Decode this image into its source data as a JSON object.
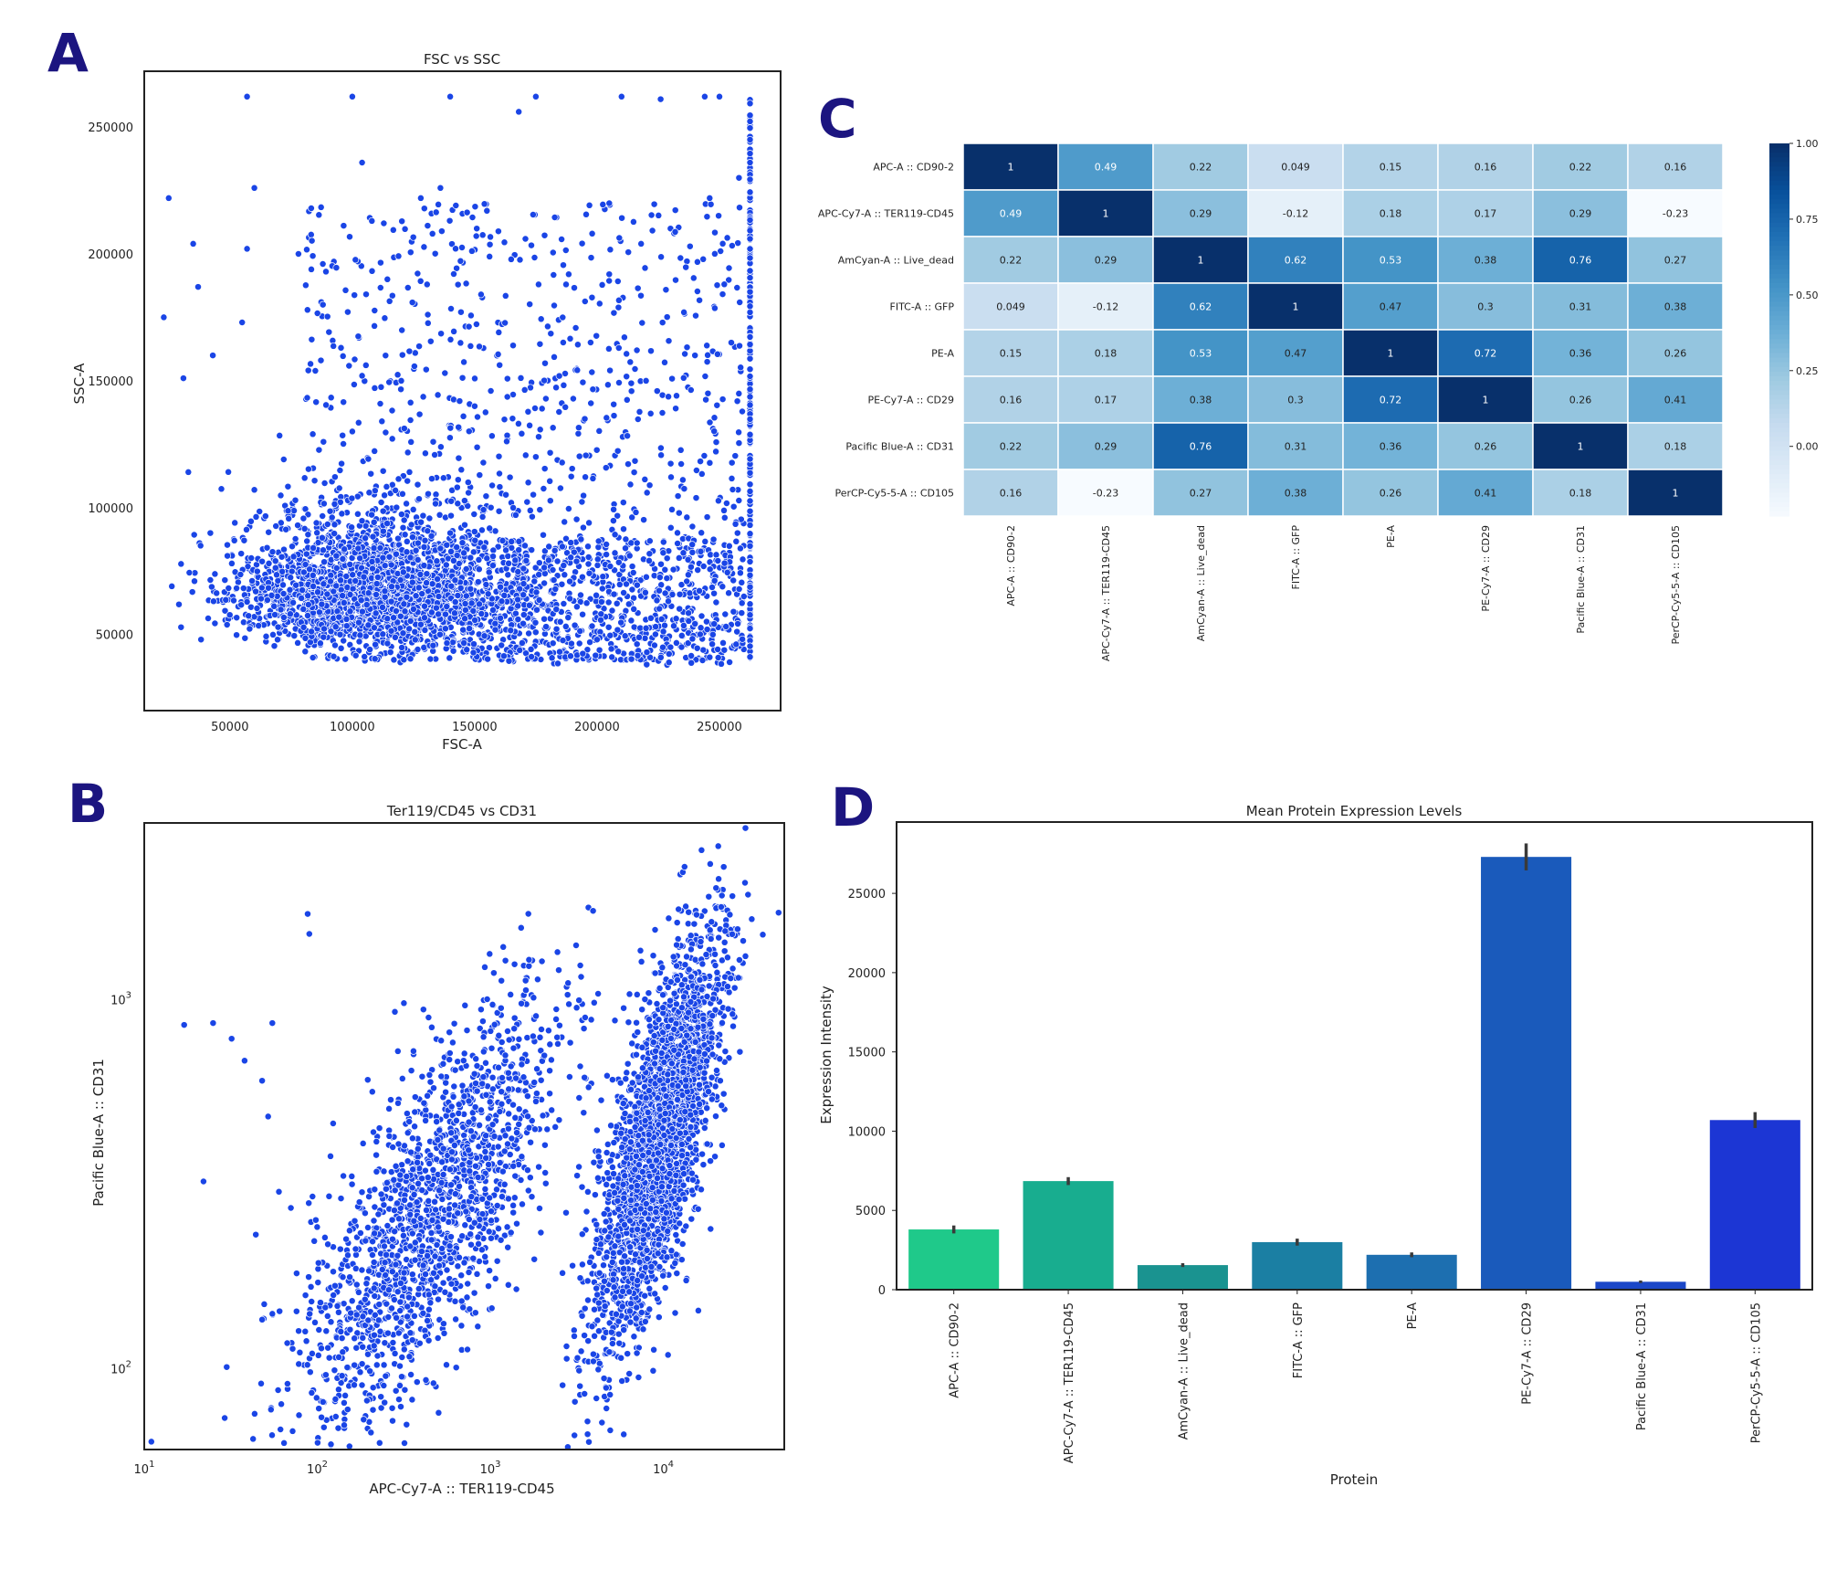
{
  "panel_letters": [
    "A",
    "B",
    "C",
    "D"
  ],
  "chart_data": [
    {
      "panel": "A",
      "type": "scatter",
      "title": "FSC vs SSC",
      "xlabel": "FSC-A",
      "ylabel": "SSC-A",
      "xlim": [
        15000,
        275000
      ],
      "ylim": [
        20000,
        272000
      ],
      "xticks": [
        50000,
        100000,
        150000,
        200000,
        250000
      ],
      "yticks": [
        50000,
        100000,
        150000,
        200000,
        250000
      ],
      "point_color": "#1a45e6",
      "points": [
        [
          25000,
          222000
        ],
        [
          23000,
          175000
        ],
        [
          35000,
          204000
        ],
        [
          31000,
          151000
        ],
        [
          37000,
          187000
        ],
        [
          43000,
          160000
        ],
        [
          55000,
          173000
        ],
        [
          60000,
          226000
        ],
        [
          57000,
          202000
        ],
        [
          78000,
          200000
        ],
        [
          100000,
          262000
        ],
        [
          57000,
          262000
        ],
        [
          140000,
          262000
        ],
        [
          175000,
          262000
        ],
        [
          168000,
          256000
        ],
        [
          250000,
          262000
        ],
        [
          244000,
          262000
        ],
        [
          210000,
          262000
        ],
        [
          226000,
          261000
        ],
        [
          33000,
          114000
        ],
        [
          38000,
          85000
        ],
        [
          42000,
          90000
        ],
        [
          49000,
          81000
        ],
        [
          52000,
          94000
        ],
        [
          60000,
          107000
        ],
        [
          72000,
          119000
        ],
        [
          88000,
          180000
        ],
        [
          104000,
          236000
        ],
        [
          108000,
          213000
        ],
        [
          128000,
          222000
        ],
        [
          136000,
          226000
        ],
        [
          155000,
          217000
        ],
        [
          198000,
          208000
        ],
        [
          205000,
          192000
        ],
        [
          218000,
          204000
        ],
        [
          238000,
          203000
        ],
        [
          246000,
          222000
        ],
        [
          258000,
          230000
        ],
        [
          252000,
          188000
        ],
        [
          80000,
          60000
        ],
        [
          95000,
          50000
        ],
        [
          110000,
          70000
        ],
        [
          125000,
          60000
        ],
        [
          140000,
          90000
        ],
        [
          155000,
          80000
        ],
        [
          170000,
          70000
        ],
        [
          185000,
          55000
        ],
        [
          200000,
          48000
        ],
        [
          215000,
          60000
        ],
        [
          230000,
          45000
        ],
        [
          245000,
          52000
        ],
        [
          260000,
          65000
        ],
        [
          100000,
          130000
        ],
        [
          120000,
          150000
        ],
        [
          150000,
          140000
        ],
        [
          175000,
          120000
        ],
        [
          195000,
          135000
        ],
        [
          220000,
          150000
        ],
        [
          240000,
          160000
        ]
      ],
      "cluster_description": "dense cloud centered near FSC 90000-130000, SSC 45000-80000, sparse toward high FSC/SSC, vertical saturation streak at FSC 262000"
    },
    {
      "panel": "B",
      "type": "scatter",
      "title": "Ter119/CD45 vs CD31",
      "xlabel": "APC-Cy7-A :: TER119-CD45",
      "ylabel": "Pacific Blue-A :: CD31",
      "xscale": "log",
      "yscale": "log",
      "xlim": [
        10,
        50000
      ],
      "ylim": [
        60,
        3000
      ],
      "xticks": [
        "10^1",
        "10^2",
        "10^3",
        "10^4"
      ],
      "yticks": [
        "10^2",
        "10^3"
      ],
      "point_color": "#1a45e6",
      "clusters": [
        {
          "center_x": 400,
          "center_y": 300,
          "description": "diffuse population extending from ~100,100 to ~3000,2000"
        },
        {
          "center_x": 9000,
          "center_y": 400,
          "description": "dense population 5000-25000 on x, 150-2000 on y"
        }
      ],
      "outliers": [
        [
          11,
          63
        ],
        [
          17,
          850
        ],
        [
          25,
          860
        ],
        [
          22,
          320
        ],
        [
          32,
          780
        ],
        [
          38,
          680
        ],
        [
          48,
          600
        ],
        [
          55,
          860
        ],
        [
          52,
          480
        ],
        [
          48,
          135
        ],
        [
          55,
          140
        ],
        [
          60,
          300
        ],
        [
          90,
          1500
        ],
        [
          88,
          1700
        ],
        [
          54,
          77
        ],
        [
          120,
          62
        ]
      ]
    },
    {
      "panel": "C",
      "type": "heatmap",
      "row_labels": [
        "APC-A :: CD90-2",
        "APC-Cy7-A :: TER119-CD45",
        "AmCyan-A :: Live_dead",
        "FITC-A :: GFP",
        "PE-A",
        "PE-Cy7-A :: CD29",
        "Pacific Blue-A :: CD31",
        "PerCP-Cy5-5-A :: CD105"
      ],
      "col_labels": [
        "APC-A :: CD90-2",
        "APC-Cy7-A :: TER119-CD45",
        "AmCyan-A :: Live_dead",
        "FITC-A :: GFP",
        "PE-A",
        "PE-Cy7-A :: CD29",
        "Pacific Blue-A :: CD31",
        "PerCP-Cy5-5-A :: CD105"
      ],
      "values": [
        [
          1,
          0.49,
          0.22,
          0.049,
          0.15,
          0.16,
          0.22,
          0.16
        ],
        [
          0.49,
          1,
          0.29,
          -0.12,
          0.18,
          0.17,
          0.29,
          -0.23
        ],
        [
          0.22,
          0.29,
          1,
          0.62,
          0.53,
          0.38,
          0.76,
          0.27
        ],
        [
          0.049,
          -0.12,
          0.62,
          1,
          0.47,
          0.3,
          0.31,
          0.38
        ],
        [
          0.15,
          0.18,
          0.53,
          0.47,
          1,
          0.72,
          0.36,
          0.26
        ],
        [
          0.16,
          0.17,
          0.38,
          0.3,
          0.72,
          1,
          0.26,
          0.41
        ],
        [
          0.22,
          0.29,
          0.76,
          0.31,
          0.36,
          0.26,
          1,
          0.18
        ],
        [
          0.16,
          -0.23,
          0.27,
          0.38,
          0.26,
          0.41,
          0.18,
          1
        ]
      ],
      "colorbar": {
        "min": -0.23,
        "max": 1.0,
        "ticks": [
          "1.00",
          "0.75",
          "0.50",
          "0.25",
          "0.00"
        ],
        "tick_values": [
          1.0,
          0.75,
          0.5,
          0.25,
          0.0
        ]
      },
      "colormap": "Blues"
    },
    {
      "panel": "D",
      "type": "bar",
      "title": "Mean Protein Expression Levels",
      "xlabel": "Protein",
      "ylabel": "Expression Intensity",
      "ylim": [
        0,
        29500
      ],
      "yticks": [
        0,
        5000,
        10000,
        15000,
        20000,
        25000
      ],
      "categories": [
        "APC-A :: CD90-2",
        "APC-Cy7-A :: TER119-CD45",
        "AmCyan-A :: Live_dead",
        "FITC-A :: GFP",
        "PE-A",
        "PE-Cy7-A :: CD29",
        "Pacific Blue-A :: CD31",
        "PerCP-Cy5-5-A :: CD105"
      ],
      "values": [
        3800,
        6850,
        1550,
        3000,
        2200,
        27300,
        500,
        10700
      ],
      "errors": [
        250,
        250,
        120,
        220,
        150,
        850,
        80,
        500
      ],
      "colors": [
        "#1fc98a",
        "#18ad8f",
        "#1a9390",
        "#1b7fa3",
        "#1d6fb0",
        "#1a5abb",
        "#1b47c7",
        "#1c36d4"
      ]
    }
  ]
}
